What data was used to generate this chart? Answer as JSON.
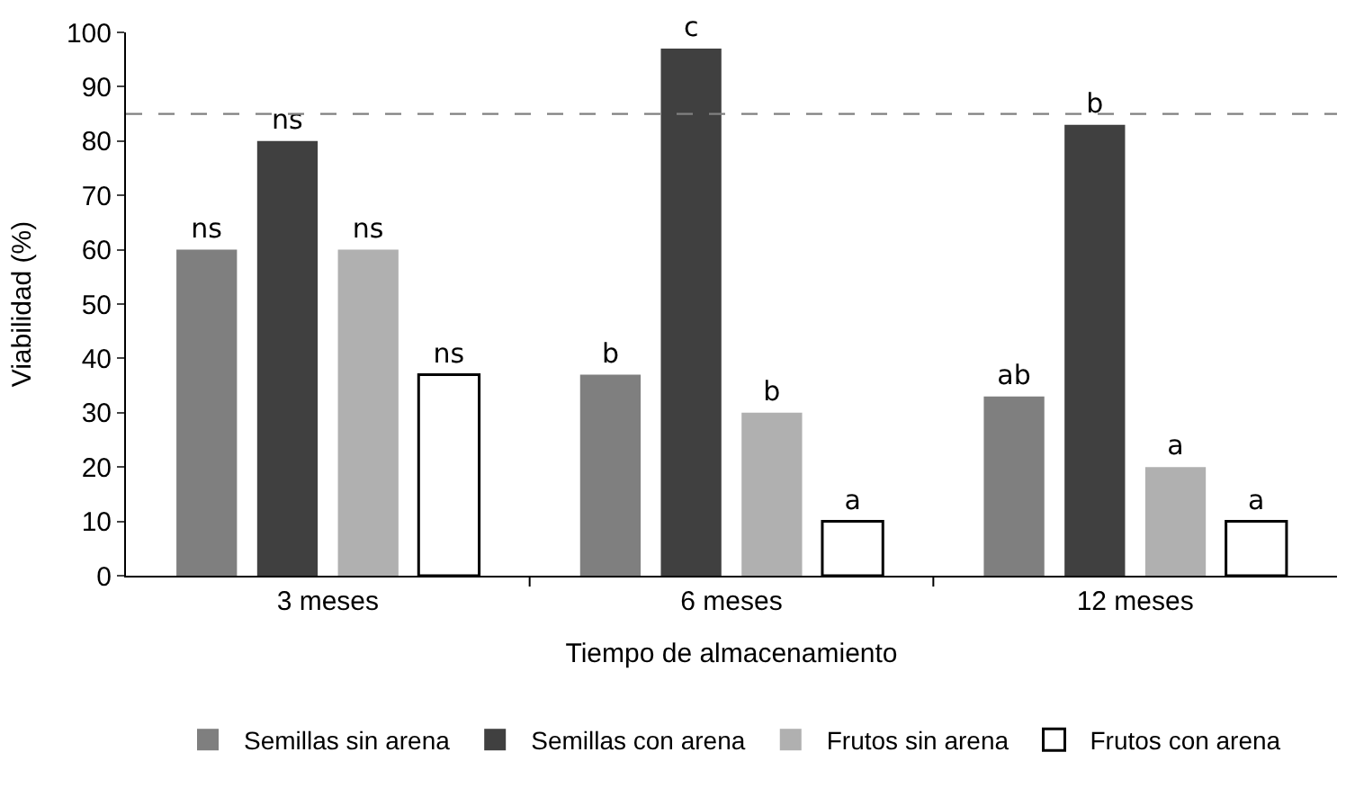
{
  "chart_data": {
    "type": "bar",
    "xlabel": "Tiempo de almacenamiento",
    "ylabel": "Viabilidad (%)",
    "categories": [
      "3 meses",
      "6 meses",
      "12 meses"
    ],
    "series": [
      {
        "name": "Semillas sin arena",
        "color": "#7f7f7f",
        "values": [
          60,
          37,
          33
        ],
        "value_labels": [
          "ns",
          "b",
          "ab"
        ]
      },
      {
        "name": "Semillas con arena",
        "color": "#404040",
        "values": [
          80,
          97,
          83
        ],
        "value_labels": [
          "ns",
          "c",
          "b"
        ]
      },
      {
        "name": "Frutos sin arena",
        "color": "#b0b0b0",
        "values": [
          60,
          30,
          20
        ],
        "value_labels": [
          "ns",
          "b",
          "a"
        ]
      },
      {
        "name": "Frutos con arena",
        "color": "#ffffff",
        "values": [
          37,
          10,
          10
        ],
        "value_labels": [
          "ns",
          "a",
          "a"
        ]
      }
    ],
    "ylim": [
      0,
      100
    ],
    "yticks": [
      0,
      10,
      20,
      30,
      40,
      50,
      60,
      70,
      80,
      90,
      100
    ],
    "ref_lines": [
      {
        "axis": "y",
        "value": 85,
        "color": "#808080",
        "line_style": "dashed"
      }
    ],
    "legend": "bottom"
  }
}
